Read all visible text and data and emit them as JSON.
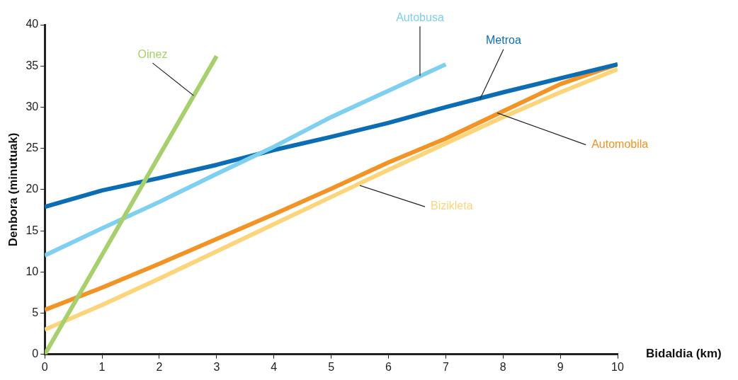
{
  "chart_data": {
    "type": "line",
    "xlabel": "Bidaldia (km)",
    "ylabel": "Denbora (minutuak)",
    "xlim": [
      0,
      10
    ],
    "xticks": [
      0,
      1,
      2,
      3,
      4,
      5,
      6,
      7,
      8,
      9,
      10
    ],
    "ylim": [
      0,
      40
    ],
    "yticks": [
      0,
      5,
      10,
      15,
      20,
      25,
      30,
      35,
      40
    ],
    "grid": false,
    "legend": false,
    "marker": "none",
    "line_style": "solid",
    "series": [
      {
        "name": "Oinez",
        "color": "#a6d06a",
        "x": [
          0,
          3
        ],
        "values": [
          0,
          36.2
        ]
      },
      {
        "name": "Autobusa",
        "color": "#7dd0f0",
        "x": [
          0,
          1,
          2,
          3,
          4,
          5,
          6,
          7
        ],
        "values": [
          12,
          15.3,
          18.5,
          21.9,
          25.2,
          28.8,
          32,
          35.2
        ]
      },
      {
        "name": "Metroa",
        "color": "#0b6db4",
        "x": [
          0,
          1,
          2,
          3,
          4,
          5,
          6,
          7,
          8,
          9,
          10
        ],
        "values": [
          17.9,
          19.9,
          21.4,
          23,
          24.8,
          26.4,
          28.1,
          30,
          31.8,
          33.5,
          35.2
        ]
      },
      {
        "name": "Automobila",
        "color": "#f39323",
        "x": [
          0,
          1,
          2,
          3,
          4,
          5,
          6,
          7,
          8,
          9,
          10
        ],
        "values": [
          5.4,
          8.1,
          11,
          14,
          17,
          20.1,
          23.3,
          26.2,
          29.5,
          32.8,
          35.2
        ]
      },
      {
        "name": "Bizikleta",
        "color": "#fcd57a",
        "x": [
          0,
          1,
          2,
          3,
          4,
          5,
          6,
          7,
          8,
          9,
          10
        ],
        "values": [
          3,
          6,
          9.2,
          12.5,
          15.8,
          19.1,
          22.4,
          25.6,
          28.8,
          31.8,
          34.6
        ]
      }
    ]
  }
}
